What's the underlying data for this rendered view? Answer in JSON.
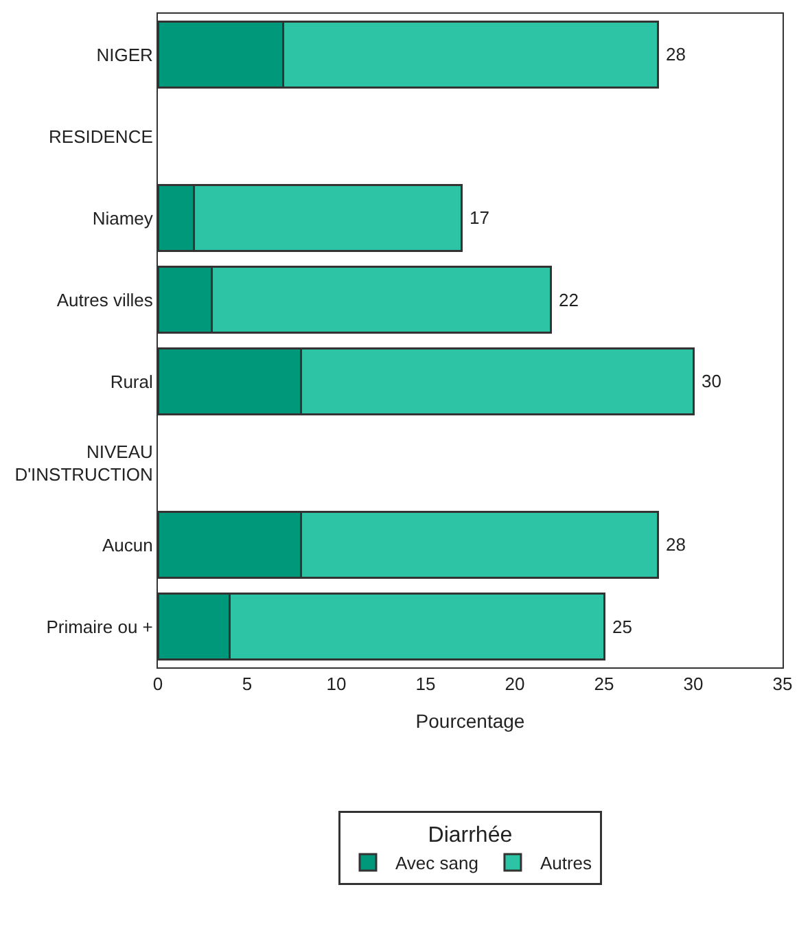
{
  "chart_data": {
    "type": "bar",
    "orientation": "horizontal",
    "stacked": true,
    "categories": [
      "NIGER",
      "RESIDENCE",
      "Niamey",
      "Autres villes",
      "Rural",
      "NIVEAU D'INSTRUCTION",
      "Aucun",
      "Primaire ou +"
    ],
    "series": [
      {
        "name": "Avec sang",
        "color": "#00987a",
        "values": [
          7,
          null,
          2,
          3,
          8,
          null,
          8,
          4
        ]
      },
      {
        "name": "Autres",
        "color": "#2dc4a5",
        "values": [
          21,
          null,
          15,
          19,
          22,
          null,
          20,
          21
        ]
      }
    ],
    "totals": [
      "28",
      null,
      "17",
      "22",
      "30",
      null,
      "28",
      "25"
    ],
    "xlabel": "Pourcentage",
    "legend_title": "Diarrhée",
    "legend": "bottom",
    "xlim": [
      0,
      35
    ],
    "xticks": [
      0,
      5,
      10,
      15,
      20,
      25,
      30,
      35
    ]
  }
}
